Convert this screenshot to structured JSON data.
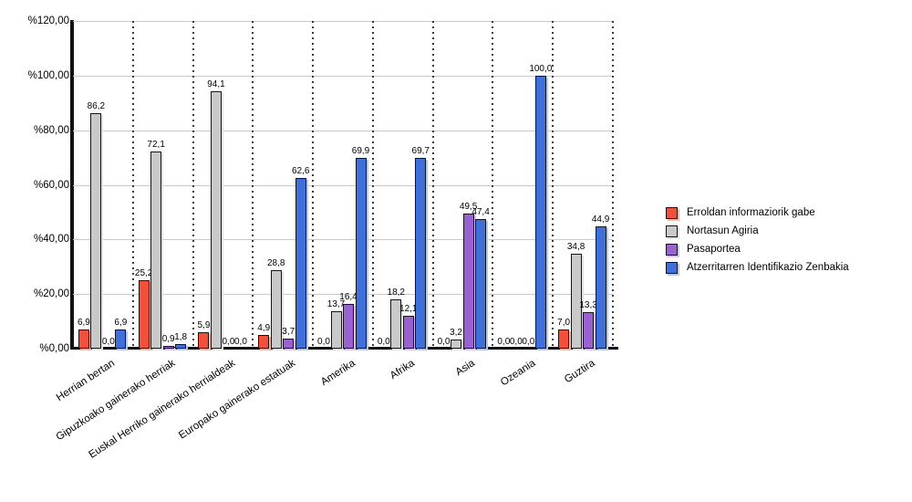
{
  "chart_data": {
    "type": "bar",
    "title": "",
    "xlabel": "",
    "ylabel": "",
    "ylim": [
      0,
      120
    ],
    "grid": true,
    "legend_position": "right",
    "yticks": [
      {
        "label": "%120,00",
        "value": 120
      },
      {
        "label": "%100,00",
        "value": 100
      },
      {
        "label": "%80,00",
        "value": 80
      },
      {
        "label": "%60,00",
        "value": 60
      },
      {
        "label": "%40,00",
        "value": 40
      },
      {
        "label": "%20,00",
        "value": 20
      },
      {
        "label": "%0,00",
        "value": 0
      }
    ],
    "categories": [
      "Herrian bertan",
      "Gipuzkoako gainerako herriak",
      "Euskal Herriko gainerako herrialdeak",
      "Europako gainerako estatuak",
      "Amerika",
      "Afrika",
      "Asia",
      "Ozeania",
      "Guztira"
    ],
    "series": [
      {
        "name": "Erroldan informaziorik gabe",
        "color": "#f2503a",
        "shadow_color": "#f9b4a7",
        "values": [
          6.9,
          25.2,
          5.9,
          4.9,
          0.0,
          0.0,
          0.0,
          0.0,
          7.0
        ],
        "labels": [
          "6,9",
          "25,2",
          "5,9",
          "4,9",
          "0,0",
          "0,0",
          "0,0",
          "0,0",
          "7,0"
        ]
      },
      {
        "name": "Nortasun Agiria",
        "color": "#c9c9c9",
        "shadow_color": "#e3e3e3",
        "values": [
          86.2,
          72.1,
          94.1,
          28.8,
          13.7,
          18.2,
          3.2,
          0.0,
          34.8
        ],
        "labels": [
          "86,2",
          "72,1",
          "94,1",
          "28,8",
          "13,7",
          "18,2",
          "3,2",
          "0,0",
          "34,8"
        ]
      },
      {
        "name": "Pasaportea",
        "color": "#9a62d1",
        "shadow_color": "#d9c3f0",
        "values": [
          0.0,
          0.9,
          0.0,
          3.7,
          16.4,
          12.1,
          49.5,
          0.0,
          13.3
        ],
        "labels": [
          "0,0",
          "0,9",
          "0,0",
          "3,7",
          "16,4",
          "12,1",
          "49,5",
          "0,0",
          "13,3"
        ]
      },
      {
        "name": "Atzerritarren Identifikazio Zenbakia",
        "color": "#3f70da",
        "shadow_color": "#b4c8f0",
        "values": [
          6.9,
          1.8,
          0.0,
          62.6,
          69.9,
          69.7,
          47.4,
          100.0,
          44.9
        ],
        "labels": [
          "6,9",
          "1,8",
          "0,0",
          "62,6",
          "69,9",
          "69,7",
          "47,4",
          "100,0",
          "44,9"
        ]
      }
    ]
  }
}
